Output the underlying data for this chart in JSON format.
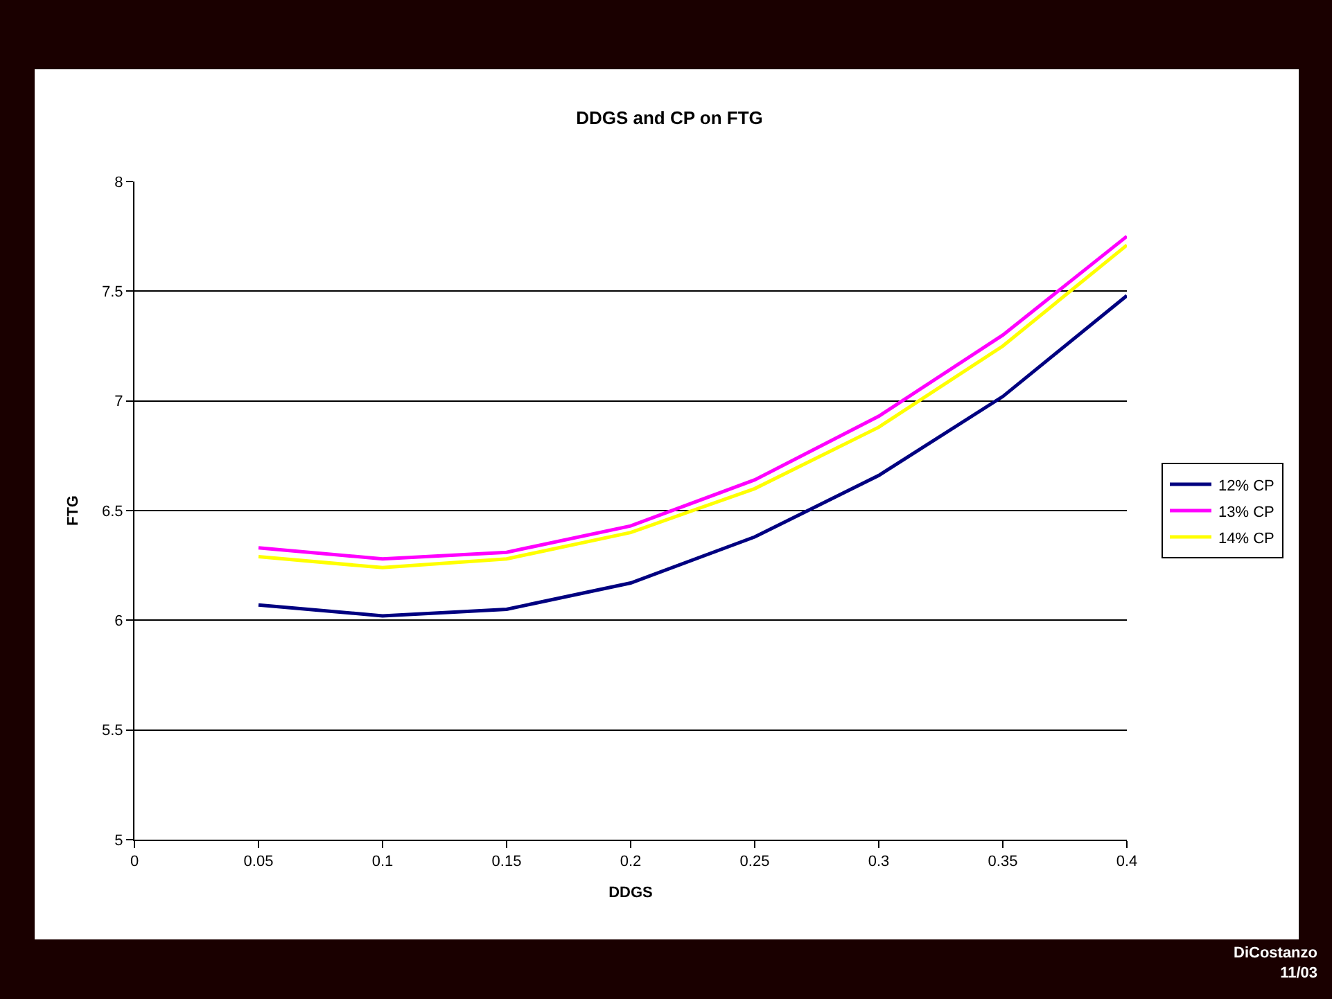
{
  "chart_data": {
    "type": "line",
    "title": "DDGS and CP on FTG",
    "xlabel": "DDGS",
    "ylabel": "FTG",
    "x": [
      0.05,
      0.1,
      0.15,
      0.2,
      0.25,
      0.3,
      0.35,
      0.4
    ],
    "series": [
      {
        "name": "12% CP",
        "color": "#000080",
        "values": [
          6.07,
          6.02,
          6.05,
          6.17,
          6.38,
          6.66,
          7.02,
          7.48
        ]
      },
      {
        "name": "13% CP",
        "color": "#ff00ff",
        "values": [
          6.33,
          6.28,
          6.31,
          6.43,
          6.64,
          6.93,
          7.3,
          7.75
        ]
      },
      {
        "name": "14% CP",
        "color": "#ffff00",
        "values": [
          6.29,
          6.24,
          6.28,
          6.4,
          6.6,
          6.88,
          7.25,
          7.71
        ]
      }
    ],
    "xlim": [
      0,
      0.4
    ],
    "xticks": [
      0,
      0.05,
      0.1,
      0.15,
      0.2,
      0.25,
      0.3,
      0.35,
      0.4
    ],
    "ylim": [
      5,
      8
    ],
    "yticks": [
      5,
      5.5,
      6,
      6.5,
      7,
      7.5,
      8
    ],
    "grid": "y",
    "legend": "right",
    "marker": "none",
    "line_style": "solid",
    "annotations": [
      "DiCostanzo\n11/03"
    ]
  }
}
